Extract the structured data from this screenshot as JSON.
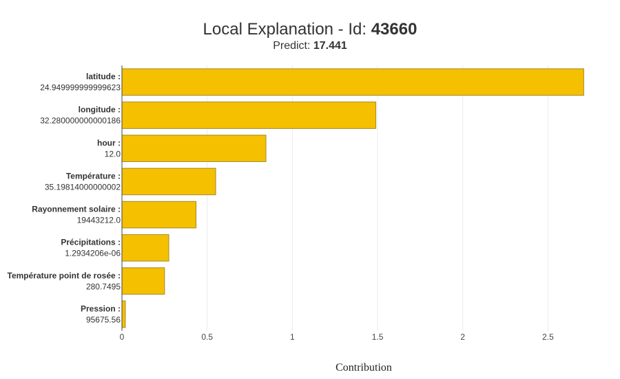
{
  "chart_data": {
    "type": "bar",
    "orientation": "horizontal",
    "title_prefix": "Local Explanation - Id: ",
    "title_id": "43660",
    "subtitle_prefix": "Predict: ",
    "subtitle_value": "17.441",
    "xlabel": "Contribution",
    "ylabel": "",
    "xlim": [
      0,
      2.85
    ],
    "xticks": [
      0,
      0.5,
      1,
      1.5,
      2,
      2.5
    ],
    "xtick_labels": [
      "0",
      "0.5",
      "1",
      "1.5",
      "2",
      "2.5"
    ],
    "grid": true,
    "bar_color": "#f5c000",
    "bar_edge_color": "#a08a2a",
    "features": [
      {
        "name": "latitude :",
        "value": "24.949999999999623",
        "contribution": 2.71
      },
      {
        "name": "longitude :",
        "value": "32.280000000000186",
        "contribution": 1.49
      },
      {
        "name": "hour :",
        "value": "12.0",
        "contribution": 0.845
      },
      {
        "name": "Température :",
        "value": "35.19814000000002",
        "contribution": 0.55
      },
      {
        "name": "Rayonnement solaire  :",
        "value": "19443212.0",
        "contribution": 0.435
      },
      {
        "name": "Précipitations :",
        "value": "1.2934206e-06",
        "contribution": 0.275
      },
      {
        "name": "Température point de rosée :",
        "value": "280.7495",
        "contribution": 0.25
      },
      {
        "name": "Pression :",
        "value": "95675.56",
        "contribution": 0.02
      }
    ]
  }
}
